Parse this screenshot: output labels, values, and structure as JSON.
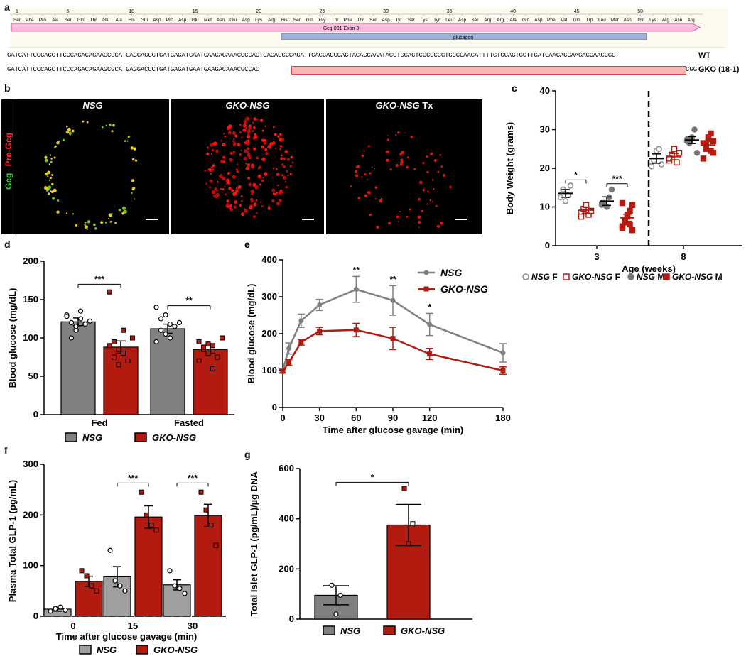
{
  "colors": {
    "nsg": "#808080",
    "gko": "#b31b10",
    "axis": "#000000",
    "seqbar": "#f9bde0",
    "glucagonbar": "#9fb3d8",
    "delbox": "#f4b8b5"
  },
  "panel_a": {
    "letter": "a",
    "ruler_numbers": [
      "1",
      "5",
      "10",
      "15",
      "20",
      "25",
      "30",
      "35",
      "40",
      "45",
      "50"
    ],
    "amino_acids": [
      "Ser",
      "Phe",
      "Pro",
      "Ala",
      "Ser",
      "Gln",
      "Thr",
      "Glu",
      "Ala",
      "His",
      "Glu",
      "Asp",
      "Pro",
      "Asp",
      "Glu",
      "Met",
      "Asn",
      "Glu",
      "Asp",
      "Lys",
      "Arg",
      "His",
      "Ser",
      "Gln",
      "Gly",
      "Thr",
      "Phe",
      "Thr",
      "Ser",
      "Asp",
      "Tyr",
      "Ser",
      "Lys",
      "Tyr",
      "Leu",
      "Asp",
      "Ser",
      "Arg",
      "Arg",
      "Ala",
      "Gln",
      "Asp",
      "Phe",
      "Val",
      "Gln",
      "Trp",
      "Leu",
      "Met",
      "Asn",
      "Thr",
      "Lys",
      "Arg",
      "Asn",
      "Arg"
    ],
    "exon_label": "Gcg-001 Exon 3",
    "glucagon_label": "glucagon",
    "wt_seq": "GATCATTCCCAGCTTCCCAGACAGAAGCGCATGAGGACCCTGATGAGATGAATGAAGACAAACGCCACTCACAGGGCACATTCACCAGCGACTACAGCAAATACCTGGACTCCCGCCGTGCCCAAGATTTTGTGCAGTGGTTGATGAACACCAAGAGGAACCGG",
    "wt_label": "WT",
    "gko_seq_left": "GATCATTCCCAGCTTCCCAGACAGAAGCGCATGAGGACCCTGATGAGATGAATGAAGACAAACGCCAC",
    "gko_seq_right": "CGG",
    "gko_label": "GKO (18-1)"
  },
  "panel_b": {
    "letter": "b",
    "headers": [
      {
        "italic": "NSG",
        "plain": ""
      },
      {
        "italic": "GKO-NSG",
        "plain": ""
      },
      {
        "italic": "GKO-NSG",
        "plain": " Tx"
      }
    ],
    "side_label_red": "Pro-Gcg",
    "side_label_green": "Gcg"
  },
  "panel_c": {
    "letter": "c",
    "chart_data": {
      "type": "scatter",
      "title": "",
      "xlabel": "Age (weeks)",
      "ylabel": "Body Weight (grams)",
      "ylim": [
        0,
        40
      ],
      "yticks": [
        "0",
        "10",
        "20",
        "30",
        "40"
      ],
      "categories": [
        "3",
        "8"
      ],
      "series": [
        {
          "name": "NSG F",
          "group": "3",
          "mean": 13.5,
          "sem": 1.0,
          "points": [
            12.5,
            14.5,
            11.5,
            13.0,
            15.5
          ]
        },
        {
          "name": "GKO-NSG F",
          "group": "3",
          "mean": 9.2,
          "sem": 0.8,
          "points": [
            8.5,
            9.5,
            10.5,
            8.0,
            9.0,
            7.5
          ]
        },
        {
          "name": "NSG M",
          "group": "3",
          "mean": 11.5,
          "sem": 1.1,
          "points": [
            10.5,
            11.0,
            10.0,
            12.5,
            14.5,
            11.0
          ]
        },
        {
          "name": "GKO-NSG M",
          "group": "3",
          "mean": 7.2,
          "sem": 0.9,
          "points": [
            5.0,
            6.5,
            7.5,
            9.0,
            10.5,
            4.5,
            6.0,
            8.0,
            5.5,
            4.0,
            11.0
          ]
        },
        {
          "name": "NSG F",
          "group": "8",
          "mean": 22.5,
          "sem": 1.2,
          "points": [
            20.5,
            22.0,
            24.5,
            25.0,
            21.0
          ]
        },
        {
          "name": "GKO-NSG F",
          "group": "8",
          "mean": 23.0,
          "sem": 0.8,
          "points": [
            22.0,
            23.5,
            25.0,
            21.5,
            24.0,
            22.5
          ]
        },
        {
          "name": "NSG M",
          "group": "8",
          "mean": 27.3,
          "sem": 0.9,
          "points": [
            27.5,
            26.5,
            28.0,
            30.0,
            24.0,
            27.0
          ]
        },
        {
          "name": "GKO-NSG M",
          "group": "8",
          "mean": 26.0,
          "sem": 0.9,
          "points": [
            26.5,
            25.0,
            27.5,
            29.0,
            24.0,
            22.5,
            26.0,
            28.0,
            24.5,
            27.0
          ]
        }
      ],
      "significance": [
        {
          "group": "3",
          "label": "*"
        },
        {
          "group": "3",
          "label": "***"
        }
      ],
      "legend": [
        {
          "italic": "NSG",
          "plain": " F"
        },
        {
          "italic": "GKO-NSG",
          "plain": " F"
        },
        {
          "italic": "NSG",
          "plain": " M"
        },
        {
          "italic": "GKO-NSG",
          "plain": " M"
        }
      ]
    }
  },
  "panel_d": {
    "letter": "d",
    "chart_data": {
      "type": "bar",
      "ylabel": "Blood glucose (mg/dL)",
      "ylim": [
        0,
        200
      ],
      "yticks": [
        "0",
        "50",
        "100",
        "150",
        "200"
      ],
      "categories": [
        "Fed",
        "Fasted"
      ],
      "series": [
        {
          "name": "NSG",
          "values": [
            121,
            112
          ],
          "sem": [
            5,
            6
          ],
          "points": [
            [
              130,
              120,
              110,
              125,
              118,
              122,
              128,
              100,
              115,
              135
            ],
            " "
          ]
        },
        {
          "name": "GKO-NSG",
          "values": [
            88,
            85
          ],
          "sem": [
            8,
            5
          ],
          "points": [
            [
              160,
              95,
              85,
              80,
              70,
              100,
              90,
              75,
              65,
              110
            ],
            [
              95,
              85,
              80,
              90,
              75,
              100,
              70,
              88,
              92,
              60
            ]
          ]
        }
      ],
      "nsg_fasted_points": [
        140,
        125,
        105,
        100,
        115,
        120,
        95,
        110,
        130,
        118
      ],
      "significance": [
        {
          "category": "Fed",
          "label": "***"
        },
        {
          "category": "Fasted",
          "label": "**"
        }
      ],
      "legend": [
        "NSG",
        "GKO-NSG"
      ]
    }
  },
  "panel_e": {
    "letter": "e",
    "chart_data": {
      "type": "line",
      "xlabel": "Time after glucose gavage (min)",
      "ylabel": "Blood glucose (mg/dL)",
      "xlim": [
        0,
        180
      ],
      "ylim": [
        0,
        400
      ],
      "xticks": [
        "0",
        "30",
        "60",
        "90",
        "120",
        "180"
      ],
      "yticks": [
        "0",
        "100",
        "200",
        "300",
        "400"
      ],
      "x": [
        0,
        5,
        15,
        30,
        60,
        90,
        120,
        180
      ],
      "series": [
        {
          "name": "NSG",
          "values": [
            100,
            160,
            235,
            278,
            320,
            290,
            225,
            148
          ],
          "sem": [
            5,
            15,
            18,
            15,
            35,
            40,
            30,
            25
          ]
        },
        {
          "name": "GKO-NSG",
          "values": [
            98,
            122,
            177,
            207,
            210,
            187,
            145,
            100
          ],
          "sem": [
            5,
            8,
            8,
            10,
            18,
            30,
            15,
            10
          ]
        }
      ],
      "significance": [
        {
          "x": 60,
          "label": "**"
        },
        {
          "x": 90,
          "label": "**"
        },
        {
          "x": 120,
          "label": "*"
        }
      ],
      "legend": [
        "NSG",
        "GKO-NSG"
      ]
    }
  },
  "panel_f": {
    "letter": "f",
    "chart_data": {
      "type": "bar",
      "xlabel": "Time after glucose gavage (min)",
      "ylabel": "Plasma Total GLP-1 (pg/mL)",
      "ylim": [
        0,
        300
      ],
      "yticks": [
        "0",
        "100",
        "200",
        "300"
      ],
      "categories": [
        "0",
        "15",
        "30"
      ],
      "series": [
        {
          "name": "NSG",
          "values": [
            14,
            78,
            62
          ],
          "sem": [
            4,
            20,
            10
          ],
          "points": [
            [
              10,
              15,
              18,
              12
            ],
            [
              130,
              70,
              60,
              50
            ],
            [
              90,
              60,
              55,
              45
            ]
          ]
        },
        {
          "name": "GKO-NSG",
          "values": [
            69,
            196,
            199
          ],
          "sem": [
            10,
            22,
            22
          ],
          "points": [
            [
              90,
              80,
              60,
              50
            ],
            [
              245,
              200,
              180,
              170
            ],
            [
              245,
              210,
              180,
              140
            ]
          ]
        }
      ],
      "significance": [
        {
          "category": "15",
          "label": "***"
        },
        {
          "category": "30",
          "label": "***"
        }
      ],
      "legend": [
        "NSG",
        "GKO-NSG"
      ]
    }
  },
  "panel_g": {
    "letter": "g",
    "chart_data": {
      "type": "bar",
      "ylabel": "Total Islet GLP-1 (pg/mL)/µg DNA",
      "ylim": [
        0,
        600
      ],
      "yticks": [
        "0",
        "200",
        "400",
        "600"
      ],
      "categories": [
        "NSG",
        "GKO-NSG"
      ],
      "values": [
        95,
        375
      ],
      "sem": [
        38,
        82
      ],
      "points": [
        [
          135,
          95,
          20
        ],
        [
          520,
          380,
          300
        ]
      ],
      "significance": [
        {
          "label": "*"
        }
      ],
      "legend": [
        "NSG",
        "GKO-NSG"
      ]
    }
  }
}
